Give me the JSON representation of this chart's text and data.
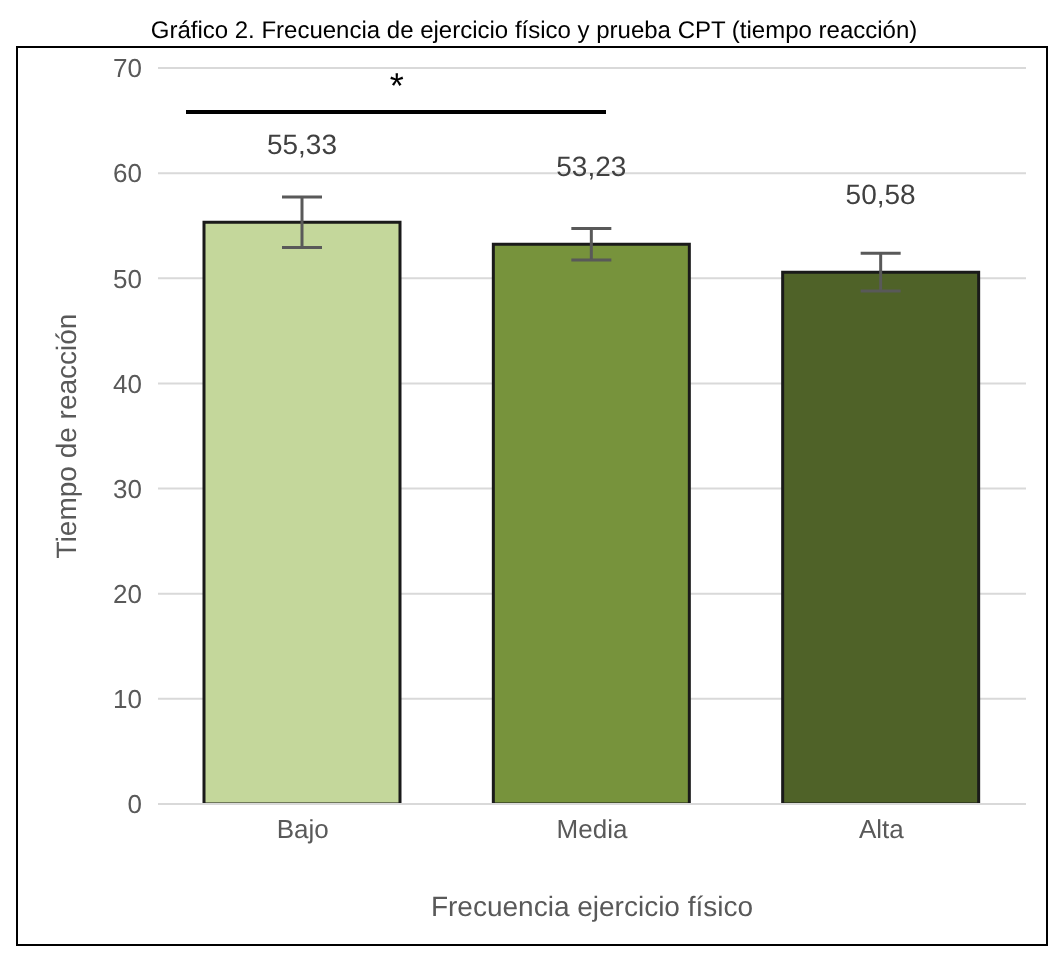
{
  "chart_data": {
    "type": "bar",
    "title": "Gráfico 2. Frecuencia de ejercicio físico y prueba CPT (tiempo reacción)",
    "xlabel": "Frecuencia ejercicio físico",
    "ylabel": "Tiempo de reacción",
    "categories": [
      "Bajo",
      "Media",
      "Alta"
    ],
    "values": [
      55.33,
      53.23,
      50.58
    ],
    "colors": [
      "#c4d79b",
      "#77933c",
      "#4f6228"
    ],
    "errors": [
      2.4,
      1.5,
      1.8
    ],
    "value_labels": [
      "55,33",
      "53,23",
      "50,58"
    ],
    "annotations": [
      "*"
    ],
    "ylim": [
      0,
      70
    ],
    "yticks": [
      0,
      10,
      20,
      30,
      40,
      50,
      60,
      70
    ],
    "grid": "y",
    "legend": false
  }
}
